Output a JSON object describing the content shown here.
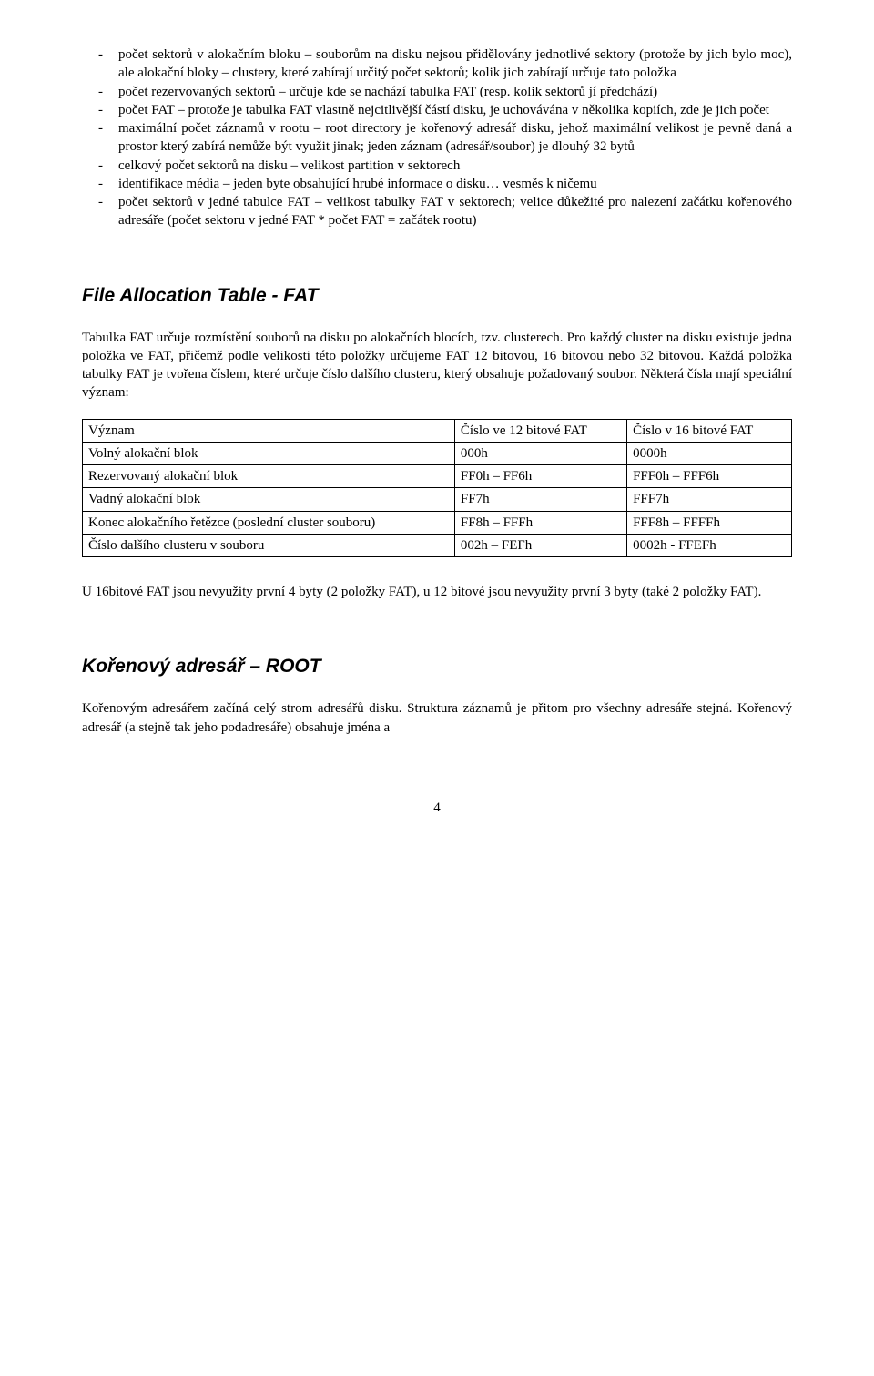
{
  "bullets": [
    "počet sektorů v alokačním bloku – souborům na disku nejsou přidělovány jednotlivé sektory (protože by jich bylo moc), ale alokační bloky – clustery, které zabírají určitý počet sektorů; kolik jich zabírají určuje tato položka",
    "počet rezervovaných sektorů – určuje kde se nachází tabulka FAT (resp. kolik sektorů jí předchází)",
    "počet FAT – protože je tabulka FAT vlastně nejcitlivější částí disku, je uchovávána v několika kopiích, zde je jich počet",
    "maximální počet záznamů v rootu – root directory je kořenový adresář disku, jehož maximální velikost je pevně daná a prostor který zabírá nemůže být využit jinak; jeden záznam (adresář/soubor) je dlouhý 32 bytů",
    "celkový počet sektorů na disku – velikost partition v sektorech",
    "identifikace média – jeden byte obsahující hrubé informace o disku… vesměs k ničemu",
    "počet sektorů v jedné tabulce FAT – velikost tabulky FAT v sektorech; velice důkežité pro nalezení začátku kořenového adresáře (počet sektoru v jedné FAT * počet FAT = začátek rootu)"
  ],
  "section_fat_title": "File Allocation Table - FAT",
  "fat_intro": "Tabulka FAT určuje rozmístění souborů na disku po alokačních blocích, tzv. clusterech. Pro každý cluster na disku existuje jedna položka ve FAT, přičemž podle velikosti této položky určujeme FAT 12 bitovou, 16 bitovou nebo 32 bitovou. Každá položka tabulky FAT je tvořena číslem, které určuje číslo dalšího clusteru, který obsahuje požadovaný soubor. Některá čísla mají speciální význam:",
  "fat_table": {
    "headers": [
      "Význam",
      "Číslo ve 12 bitové FAT",
      "Číslo v 16 bitové FAT"
    ],
    "rows": [
      [
        "Volný alokační blok",
        "000h",
        "0000h"
      ],
      [
        "Rezervovaný alokační blok",
        "FF0h – FF6h",
        "FFF0h – FFF6h"
      ],
      [
        "Vadný alokační blok",
        "FF7h",
        "FFF7h"
      ],
      [
        "Konec alokačního řetězce (poslední cluster souboru)",
        "FF8h – FFFh",
        "FFF8h – FFFFh"
      ],
      [
        "Číslo dalšího clusteru v souboru",
        "002h – FEFh",
        "0002h - FFEFh"
      ]
    ]
  },
  "fat_footer": "U 16bitové FAT jsou nevyužity první 4 byty (2 položky FAT), u 12 bitové jsou nevyužity první 3 byty (také 2 položky FAT).",
  "section_root_title": "Kořenový adresář – ROOT",
  "root_intro": "Kořenovým adresářem začíná celý strom adresářů disku. Struktura záznamů je přitom pro všechny adresáře stejná. Kořenový adresář (a stejně tak jeho podadresáře) obsahuje jména a",
  "page_number": "4"
}
